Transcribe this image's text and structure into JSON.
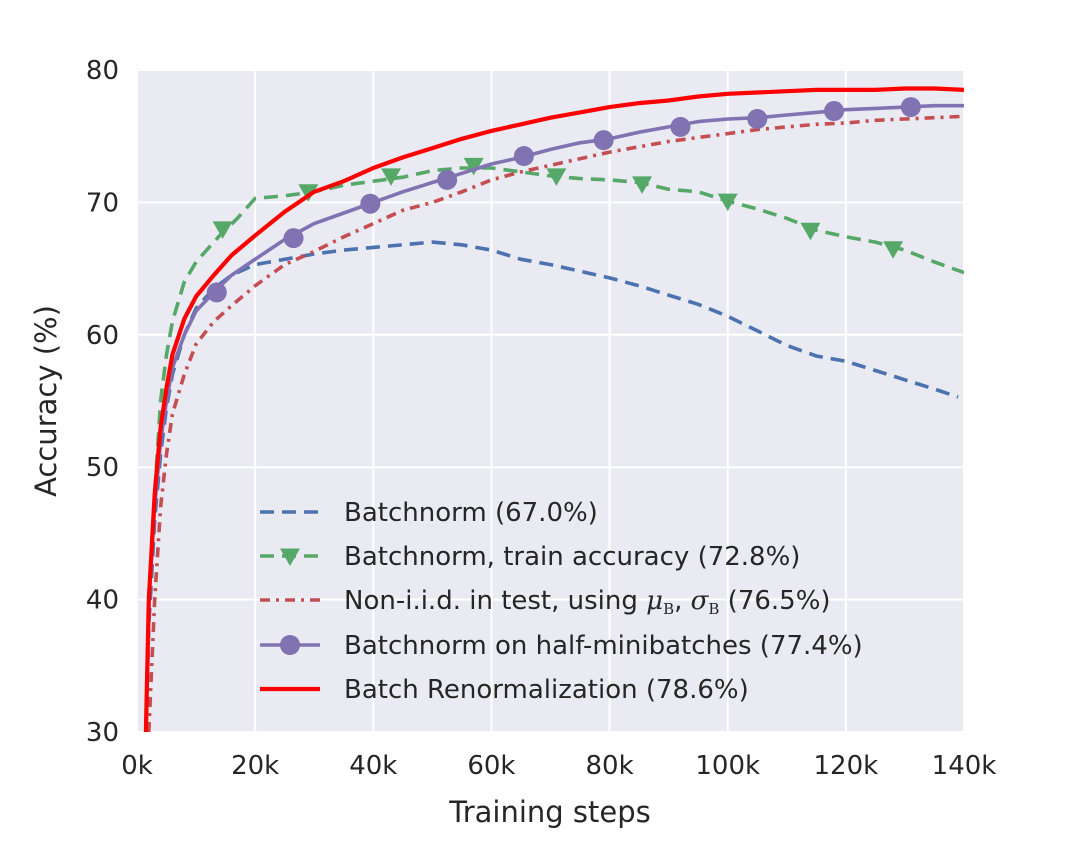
{
  "chart_data": {
    "type": "line",
    "xlabel": "Training steps",
    "ylabel": "Accuracy (%)",
    "xlim": [
      0,
      140000
    ],
    "ylim": [
      30,
      80
    ],
    "xticks": [
      0,
      20000,
      40000,
      60000,
      80000,
      100000,
      120000,
      140000
    ],
    "xtick_labels": [
      "0k",
      "20k",
      "40k",
      "60k",
      "80k",
      "100k",
      "120k",
      "140k"
    ],
    "yticks": [
      30,
      40,
      50,
      60,
      70,
      80
    ],
    "ytick_labels": [
      "30",
      "40",
      "50",
      "60",
      "70",
      "80"
    ],
    "grid": true,
    "legend_position": "lower-center",
    "background": "#eaeaf2",
    "series": [
      {
        "name": "Batchnorm (67.0%)",
        "color": "#4c72b0",
        "style": "dashed",
        "marker": "none",
        "x": [
          1500,
          2000,
          3000,
          4000,
          5000,
          6000,
          8000,
          10000,
          13000,
          16000,
          20000,
          25000,
          30000,
          35000,
          40000,
          45000,
          50000,
          55000,
          60000,
          65000,
          70000,
          75000,
          80000,
          85000,
          90000,
          95000,
          100000,
          105000,
          110000,
          115000,
          120000,
          125000,
          130000,
          135000,
          139000
        ],
        "y": [
          30,
          38,
          46,
          51,
          54.5,
          57,
          60,
          62,
          63.5,
          64.5,
          65.3,
          65.7,
          66.1,
          66.4,
          66.6,
          66.8,
          67.0,
          66.8,
          66.4,
          65.7,
          65.3,
          64.8,
          64.3,
          63.7,
          63.0,
          62.3,
          61.4,
          60.3,
          59.2,
          58.4,
          58.0,
          57.3,
          56.6,
          55.9,
          55.3
        ]
      },
      {
        "name": "Batchnorm, train accuracy (72.8%)",
        "color": "#55a868",
        "style": "dashed",
        "marker": "triangle-down",
        "x": [
          1500,
          2000,
          3000,
          4000,
          5000,
          6000,
          8000,
          10000,
          12000,
          14000,
          17000,
          20000,
          25000,
          30000,
          35000,
          40000,
          45000,
          50000,
          55000,
          60000,
          65000,
          70000,
          75000,
          80000,
          85000,
          90000,
          95000,
          100000,
          105000,
          110000,
          115000,
          120000,
          125000,
          130000,
          135000,
          140000
        ],
        "y": [
          30,
          40,
          48,
          55,
          58.5,
          61,
          64,
          65.5,
          66.5,
          67.5,
          68.8,
          70.3,
          70.5,
          70.8,
          71.3,
          71.6,
          71.9,
          72.4,
          72.6,
          72.6,
          72.3,
          72.0,
          71.8,
          71.7,
          71.5,
          71.0,
          70.8,
          70.1,
          69.5,
          68.8,
          67.9,
          67.4,
          67.0,
          66.4,
          65.5,
          64.7
        ],
        "marker_x": [
          14500,
          29000,
          43000,
          57000,
          71000,
          85500,
          100000,
          114000,
          128000
        ],
        "marker_y": [
          68.0,
          70.8,
          72.0,
          72.8,
          72.0,
          71.4,
          70.1,
          67.9,
          66.5
        ]
      },
      {
        "name": "Non-i.i.d. in test, using μ_B, σ_B (76.5%)",
        "legend_label": "Non-i.i.d. in test, using ",
        "legend_mu": "μ",
        "legend_sigma": "σ",
        "legend_sub": "B",
        "legend_sep": ", ",
        "legend_suffix": " (76.5%)",
        "color": "#c44e52",
        "style": "dashdot",
        "marker": "none",
        "x": [
          2000,
          3000,
          4000,
          5000,
          6000,
          8000,
          10000,
          13000,
          16000,
          20000,
          25000,
          30000,
          35000,
          40000,
          45000,
          50000,
          55000,
          60000,
          65000,
          70000,
          75000,
          80000,
          85000,
          90000,
          95000,
          100000,
          105000,
          110000,
          115000,
          120000,
          125000,
          130000,
          135000,
          140000
        ],
        "y": [
          30,
          40,
          47,
          51,
          54,
          57,
          59.3,
          61,
          62.2,
          63.7,
          65.3,
          66.3,
          67.4,
          68.4,
          69.4,
          70.0,
          70.8,
          71.7,
          72.3,
          72.8,
          73.3,
          73.8,
          74.2,
          74.6,
          74.9,
          75.2,
          75.5,
          75.7,
          75.9,
          76.0,
          76.2,
          76.3,
          76.4,
          76.5
        ]
      },
      {
        "name": "Batchnorm on half-minibatches (77.4%)",
        "color": "#8172b2",
        "style": "solid",
        "marker": "circle",
        "x": [
          1500,
          2000,
          3000,
          4000,
          5000,
          6000,
          8000,
          10000,
          13000,
          16000,
          20000,
          25000,
          30000,
          35000,
          40000,
          45000,
          50000,
          55000,
          60000,
          65000,
          70000,
          75000,
          80000,
          85000,
          90000,
          95000,
          100000,
          105000,
          110000,
          115000,
          120000,
          125000,
          130000,
          135000,
          140000
        ],
        "y": [
          30,
          40,
          47,
          52,
          55,
          57.5,
          60,
          61.8,
          63.2,
          64.5,
          65.7,
          67.2,
          68.4,
          69.2,
          70.0,
          70.8,
          71.5,
          72.2,
          72.9,
          73.4,
          74.0,
          74.5,
          74.8,
          75.3,
          75.7,
          76.1,
          76.3,
          76.4,
          76.6,
          76.8,
          77.0,
          77.1,
          77.2,
          77.3,
          77.3
        ],
        "marker_x": [
          13500,
          26500,
          39500,
          52500,
          65500,
          79000,
          92000,
          105000,
          118000,
          131000
        ],
        "marker_y": [
          63.2,
          67.3,
          69.9,
          71.7,
          73.5,
          74.7,
          75.7,
          76.3,
          76.9,
          77.2
        ]
      },
      {
        "name": "Batch Renormalization (78.6%)",
        "color": "#ff0000",
        "style": "solid",
        "marker": "none",
        "x": [
          1500,
          2000,
          3000,
          4000,
          5000,
          6000,
          8000,
          10000,
          13000,
          16000,
          20000,
          25000,
          30000,
          35000,
          40000,
          45000,
          50000,
          55000,
          60000,
          65000,
          70000,
          75000,
          80000,
          85000,
          90000,
          95000,
          100000,
          105000,
          110000,
          115000,
          120000,
          125000,
          130000,
          135000,
          140000
        ],
        "y": [
          30,
          40,
          48,
          53,
          56,
          58.5,
          61.2,
          62.9,
          64.5,
          66.0,
          67.5,
          69.3,
          70.8,
          71.6,
          72.6,
          73.4,
          74.1,
          74.8,
          75.4,
          75.9,
          76.4,
          76.8,
          77.2,
          77.5,
          77.7,
          78.0,
          78.2,
          78.3,
          78.4,
          78.5,
          78.5,
          78.5,
          78.6,
          78.6,
          78.5
        ]
      }
    ]
  }
}
